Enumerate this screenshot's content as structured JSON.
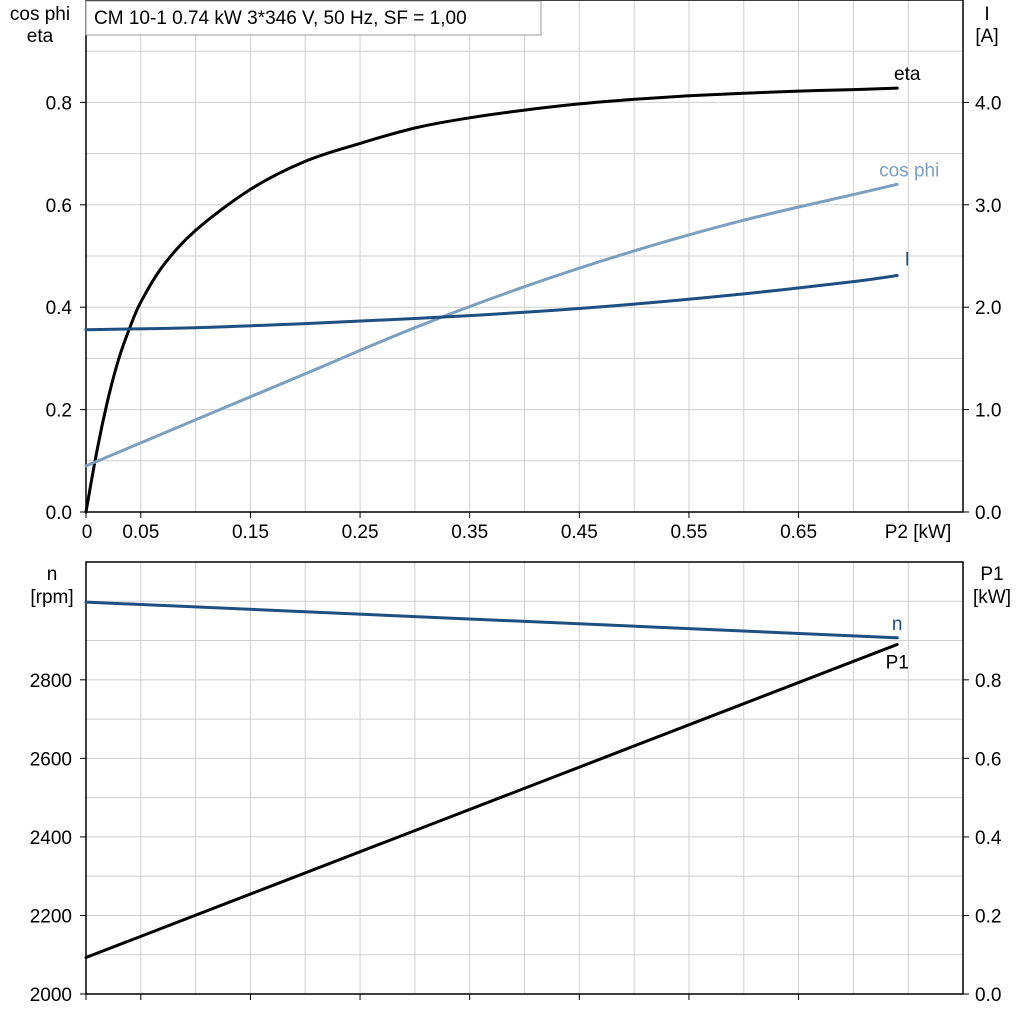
{
  "chart_data": [
    {
      "type": "line",
      "title": "CM 10-1   0.74 kW   3*346 V, 50 Hz, SF = 1,00",
      "xlabel": "P2 [kW]",
      "ylabel_left": [
        "cos phi",
        "eta"
      ],
      "ylabel_right": [
        "I",
        "[A]"
      ],
      "x_ticks": [
        "0",
        "0.05",
        "0.15",
        "0.25",
        "0.35",
        "0.45",
        "0.55",
        "0.65"
      ],
      "y_ticks_left": [
        "0.0",
        "0.2",
        "0.4",
        "0.6",
        "0.8"
      ],
      "y_ticks_right": [
        "0.0",
        "1.0",
        "2.0",
        "3.0",
        "4.0"
      ],
      "xlim": [
        0,
        0.8
      ],
      "ylim_left": [
        0,
        1.0
      ],
      "ylim_right": [
        0,
        5.0
      ],
      "grid": true,
      "series": [
        {
          "name": "eta",
          "axis": "left",
          "color": "#000000",
          "x": [
            0,
            0.01,
            0.02,
            0.03,
            0.04,
            0.05,
            0.07,
            0.1,
            0.15,
            0.2,
            0.25,
            0.3,
            0.35,
            0.4,
            0.45,
            0.5,
            0.55,
            0.6,
            0.65,
            0.7,
            0.74
          ],
          "y": [
            0,
            0.12,
            0.22,
            0.3,
            0.36,
            0.41,
            0.48,
            0.55,
            0.63,
            0.685,
            0.72,
            0.75,
            0.77,
            0.785,
            0.797,
            0.806,
            0.813,
            0.818,
            0.822,
            0.825,
            0.828
          ]
        },
        {
          "name": "cos phi",
          "axis": "left",
          "color": "#7d9fbf",
          "x": [
            0,
            0.1,
            0.2,
            0.3,
            0.4,
            0.5,
            0.6,
            0.7,
            0.74
          ],
          "y": [
            0.09,
            0.18,
            0.27,
            0.36,
            0.44,
            0.51,
            0.57,
            0.62,
            0.64
          ]
        },
        {
          "name": "I",
          "axis": "right",
          "color": "#1d4f80",
          "x": [
            0,
            0.1,
            0.2,
            0.3,
            0.4,
            0.5,
            0.6,
            0.7,
            0.74
          ],
          "y": [
            1.78,
            1.8,
            1.84,
            1.89,
            1.95,
            2.03,
            2.13,
            2.25,
            2.31
          ]
        }
      ]
    },
    {
      "type": "line",
      "ylabel_left": [
        "n",
        "[rpm]"
      ],
      "ylabel_right": [
        "P1",
        "[kW]"
      ],
      "y_ticks_left": [
        "2000",
        "2200",
        "2400",
        "2600",
        "2800"
      ],
      "y_ticks_right": [
        "0.0",
        "0.2",
        "0.4",
        "0.6",
        "0.8"
      ],
      "xlim": [
        0,
        0.8
      ],
      "ylim_left": [
        2000,
        3100
      ],
      "ylim_right": [
        0,
        1.1
      ],
      "grid": true,
      "series": [
        {
          "name": "n",
          "axis": "left",
          "color": "#1d4f80",
          "x": [
            0,
            0.74
          ],
          "y": [
            2998,
            2907
          ]
        },
        {
          "name": "P1",
          "axis": "right",
          "color": "#000000",
          "x": [
            0,
            0.74
          ],
          "y": [
            0.093,
            0.89
          ]
        }
      ]
    }
  ]
}
